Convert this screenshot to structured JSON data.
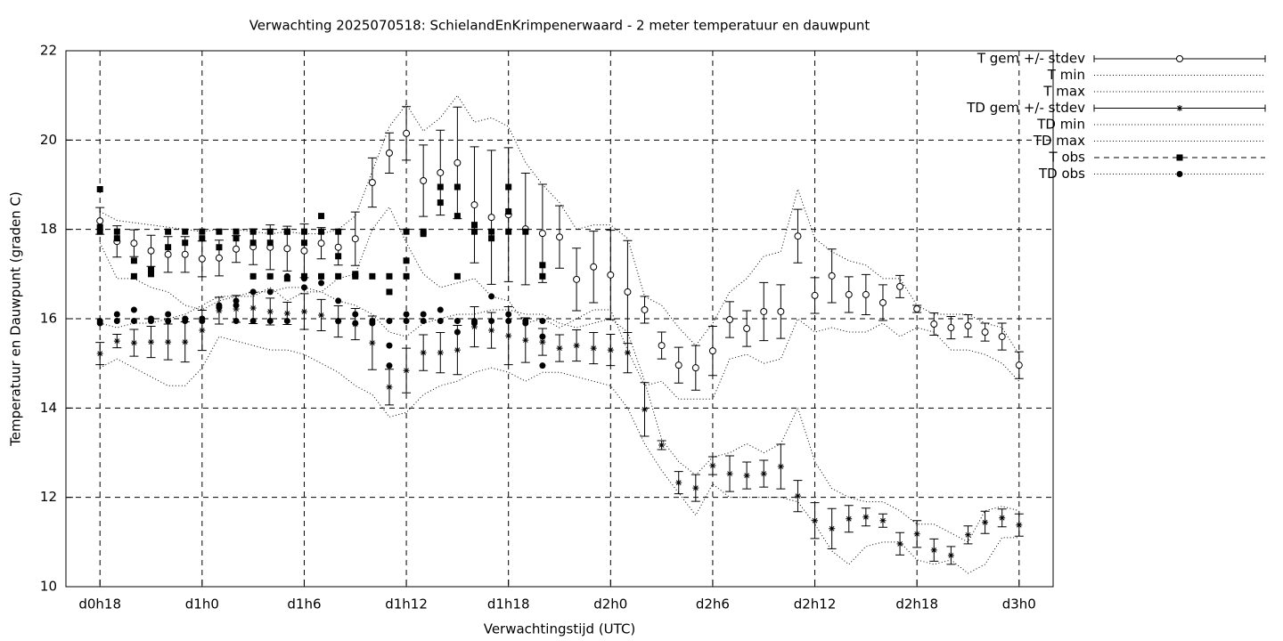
{
  "chart_data": {
    "type": "errorbar",
    "title": "Verwachting 2025070518: SchielandEnKrimpenerwaard - 2 meter temperatuur en dauwpunt",
    "x_label": "Verwachtingstijd (UTC)",
    "y_label": "Temperatuur en Dauwpunt (graden C)",
    "xlim": [
      16,
      74
    ],
    "ylim": [
      10,
      22
    ],
    "xticks": [
      {
        "value": 18,
        "label": "d0h18"
      },
      {
        "value": 24,
        "label": "d1h0"
      },
      {
        "value": 30,
        "label": "d1h6"
      },
      {
        "value": 36,
        "label": "d1h12"
      },
      {
        "value": 42,
        "label": "d1h18"
      },
      {
        "value": 48,
        "label": "d2h0"
      },
      {
        "value": 54,
        "label": "d2h6"
      },
      {
        "value": 60,
        "label": "d2h12"
      },
      {
        "value": 66,
        "label": "d2h18"
      },
      {
        "value": 72,
        "label": "d3h0"
      }
    ],
    "yticks": [
      10,
      12,
      14,
      16,
      18,
      20,
      22
    ],
    "grid": true,
    "legend": "outside-right",
    "x": [
      18,
      19,
      20,
      21,
      22,
      23,
      24,
      25,
      26,
      27,
      28,
      29,
      30,
      31,
      32,
      33,
      34,
      35,
      36,
      37,
      38,
      39,
      40,
      41,
      42,
      43,
      44,
      45,
      46,
      47,
      48,
      49,
      50,
      51,
      52,
      53,
      54,
      55,
      56,
      57,
      58,
      59,
      60,
      61,
      62,
      63,
      64,
      65,
      66,
      67,
      68,
      69,
      70,
      71,
      72
    ],
    "series": [
      {
        "name": "T gem +/- stdev",
        "color": "#000000",
        "style": "errorbar",
        "marker": "circle-open",
        "values": [
          18.19,
          17.73,
          17.69,
          17.52,
          17.44,
          17.44,
          17.34,
          17.36,
          17.56,
          17.61,
          17.6,
          17.57,
          17.52,
          17.69,
          17.6,
          17.79,
          19.05,
          19.71,
          20.15,
          19.09,
          19.27,
          19.49,
          18.55,
          18.27,
          18.33,
          18.01,
          17.91,
          17.83,
          16.88,
          17.16,
          16.98,
          16.6,
          16.2,
          15.4,
          14.96,
          14.9,
          15.28,
          15.98,
          15.78,
          16.16,
          16.16,
          17.85,
          16.52,
          16.96,
          16.54,
          16.54,
          16.36,
          16.72,
          16.22,
          15.88,
          15.8,
          15.84,
          15.7,
          15.6,
          14.96
        ],
        "errors": [
          0.3,
          0.35,
          0.3,
          0.35,
          0.4,
          0.4,
          0.4,
          0.4,
          0.3,
          0.4,
          0.5,
          0.5,
          0.6,
          0.35,
          0.4,
          0.6,
          0.55,
          0.45,
          0.6,
          0.8,
          0.95,
          1.25,
          1.3,
          1.5,
          1.5,
          1.25,
          1.1,
          0.7,
          0.7,
          0.8,
          1.0,
          1.15,
          0.3,
          0.3,
          0.4,
          0.5,
          0.55,
          0.4,
          0.4,
          0.65,
          0.6,
          0.6,
          0.4,
          0.6,
          0.4,
          0.45,
          0.4,
          0.25,
          0.08,
          0.25,
          0.25,
          0.25,
          0.2,
          0.3,
          0.3
        ]
      },
      {
        "name": "T min",
        "color": "#000000",
        "style": "dotted",
        "values": [
          17.7,
          16.9,
          16.9,
          16.7,
          16.6,
          16.3,
          16.2,
          16.4,
          16.5,
          16.5,
          16.7,
          16.4,
          16.6,
          16.6,
          16.9,
          17.0,
          18.0,
          18.5,
          17.7,
          17.0,
          16.7,
          16.8,
          16.9,
          16.5,
          16.4,
          15.9,
          16.0,
          15.8,
          16.0,
          16.2,
          16.2,
          15.3,
          14.5,
          14.6,
          14.2,
          14.2,
          14.2,
          15.1,
          15.2,
          15.0,
          15.1,
          16.0,
          15.7,
          15.8,
          15.7,
          15.7,
          15.9,
          15.6,
          15.8,
          15.7,
          15.3,
          15.3,
          15.2,
          15.0,
          14.6
        ]
      },
      {
        "name": "T max",
        "color": "#000000",
        "style": "dotted",
        "values": [
          18.4,
          18.2,
          18.15,
          18.1,
          18.05,
          18.0,
          17.95,
          18.0,
          18.0,
          17.95,
          17.9,
          17.95,
          17.9,
          17.9,
          18.0,
          18.3,
          19.3,
          20.3,
          20.8,
          20.2,
          20.5,
          21.0,
          20.4,
          20.5,
          20.3,
          19.5,
          19.0,
          18.6,
          18.0,
          18.1,
          18.1,
          17.8,
          16.5,
          16.3,
          15.8,
          15.4,
          15.9,
          16.6,
          16.9,
          17.4,
          17.5,
          18.9,
          17.8,
          17.5,
          17.3,
          17.2,
          16.9,
          16.9,
          16.3,
          16.1,
          16.1,
          16.1,
          15.9,
          15.8,
          15.2
        ]
      },
      {
        "name": "TD gem +/- stdev",
        "color": "#000000",
        "style": "errorbar",
        "marker": "asterisk",
        "values": [
          15.22,
          15.5,
          15.46,
          15.48,
          15.48,
          15.48,
          15.74,
          16.18,
          16.22,
          16.24,
          16.16,
          16.12,
          16.16,
          16.08,
          15.94,
          15.88,
          15.46,
          14.47,
          14.84,
          15.24,
          15.24,
          15.3,
          15.82,
          15.74,
          15.62,
          15.52,
          15.48,
          15.34,
          15.4,
          15.34,
          15.3,
          15.24,
          13.97,
          13.17,
          12.33,
          12.21,
          12.71,
          12.53,
          12.49,
          12.53,
          12.69,
          12.03,
          11.48,
          11.3,
          11.52,
          11.56,
          11.48,
          10.96,
          11.18,
          10.82,
          10.7,
          11.16,
          11.44,
          11.54,
          11.38
        ],
        "errors": [
          0.25,
          0.15,
          0.3,
          0.35,
          0.4,
          0.45,
          0.45,
          0.3,
          0.3,
          0.35,
          0.3,
          0.25,
          0.4,
          0.35,
          0.35,
          0.35,
          0.6,
          0.4,
          0.5,
          0.4,
          0.45,
          0.55,
          0.45,
          0.4,
          0.65,
          0.5,
          0.3,
          0.3,
          0.35,
          0.35,
          0.35,
          0.45,
          0.6,
          0.1,
          0.25,
          0.3,
          0.2,
          0.4,
          0.3,
          0.3,
          0.5,
          0.35,
          0.4,
          0.45,
          0.3,
          0.2,
          0.15,
          0.25,
          0.3,
          0.25,
          0.2,
          0.2,
          0.25,
          0.2,
          0.25
        ]
      },
      {
        "name": "TD min",
        "color": "#000000",
        "style": "dotted",
        "values": [
          14.9,
          15.1,
          14.9,
          14.7,
          14.5,
          14.5,
          14.9,
          15.6,
          15.5,
          15.4,
          15.3,
          15.3,
          15.2,
          15.0,
          14.8,
          14.5,
          14.3,
          13.8,
          13.9,
          14.3,
          14.5,
          14.6,
          14.8,
          14.9,
          14.8,
          14.6,
          14.8,
          14.8,
          14.7,
          14.6,
          14.5,
          14.0,
          13.2,
          12.6,
          12.1,
          11.6,
          12.3,
          12.0,
          12.0,
          12.0,
          12.0,
          11.9,
          11.4,
          10.8,
          10.5,
          10.9,
          11.0,
          11.0,
          10.6,
          10.5,
          10.6,
          10.3,
          10.5,
          11.1,
          11.1
        ]
      },
      {
        "name": "TD max",
        "color": "#000000",
        "style": "dotted",
        "values": [
          15.9,
          15.8,
          15.9,
          15.9,
          16.0,
          16.1,
          16.3,
          16.5,
          16.5,
          16.6,
          16.6,
          16.7,
          16.7,
          16.6,
          16.4,
          16.3,
          16.1,
          15.7,
          15.6,
          15.9,
          16.0,
          16.1,
          16.1,
          16.2,
          16.2,
          16.1,
          16.1,
          15.9,
          15.8,
          15.9,
          16.0,
          15.7,
          14.6,
          13.3,
          12.8,
          12.5,
          12.9,
          13.0,
          13.2,
          13.0,
          13.2,
          14.0,
          12.8,
          12.2,
          12.0,
          11.9,
          11.9,
          11.7,
          11.4,
          11.4,
          11.2,
          11.0,
          11.7,
          11.8,
          11.7
        ]
      },
      {
        "name": "T obs",
        "color": "#000000",
        "style": "points",
        "marker": "square",
        "x": [
          18,
          18,
          18,
          19,
          19,
          20,
          20,
          21,
          21,
          22,
          22,
          23,
          23,
          24,
          24,
          25,
          25,
          26,
          26,
          27,
          27,
          27,
          28,
          28,
          28,
          29,
          29,
          29,
          30,
          30,
          30,
          31,
          31,
          31,
          32,
          32,
          32,
          33,
          33,
          34,
          35,
          35,
          36,
          36,
          36,
          37,
          37,
          38,
          38,
          39,
          39,
          39,
          40,
          40,
          41,
          41,
          42,
          42,
          42,
          43,
          44,
          44
        ],
        "values": [
          18.9,
          18.05,
          17.95,
          17.95,
          17.8,
          17.3,
          16.95,
          17.1,
          17.0,
          17.95,
          17.6,
          17.95,
          17.7,
          17.95,
          17.8,
          17.95,
          17.6,
          17.95,
          17.8,
          17.95,
          17.7,
          16.95,
          17.95,
          17.7,
          16.95,
          17.95,
          17.95,
          16.9,
          17.95,
          17.7,
          16.95,
          18.3,
          17.95,
          16.95,
          17.95,
          17.4,
          16.95,
          16.95,
          17.0,
          16.95,
          16.95,
          16.6,
          17.95,
          17.3,
          16.95,
          17.95,
          17.9,
          18.95,
          18.6,
          18.95,
          18.3,
          16.95,
          18.1,
          17.95,
          17.95,
          17.8,
          18.95,
          18.4,
          17.95,
          17.95,
          17.2,
          16.95
        ]
      },
      {
        "name": "TD obs",
        "color": "#000000",
        "style": "points",
        "marker": "circle",
        "x": [
          18,
          18,
          19,
          19,
          20,
          20,
          21,
          21,
          22,
          22,
          23,
          23,
          24,
          24,
          25,
          25,
          26,
          26,
          26,
          27,
          27,
          27,
          28,
          28,
          28,
          29,
          29,
          30,
          30,
          31,
          31,
          32,
          32,
          33,
          33,
          34,
          34,
          35,
          35,
          35,
          36,
          36,
          37,
          37,
          38,
          38,
          39,
          39,
          40,
          40,
          41,
          41,
          42,
          42,
          43,
          43,
          44,
          44,
          44
        ],
        "values": [
          15.95,
          15.9,
          16.1,
          15.95,
          16.2,
          15.95,
          16.0,
          15.95,
          16.1,
          15.95,
          16.0,
          15.95,
          16.0,
          15.95,
          16.3,
          16.25,
          16.4,
          16.3,
          15.95,
          16.95,
          16.6,
          15.95,
          16.95,
          16.6,
          15.95,
          16.95,
          15.95,
          16.9,
          16.7,
          16.95,
          16.8,
          16.4,
          15.95,
          16.1,
          15.9,
          15.95,
          15.9,
          15.95,
          15.4,
          14.95,
          16.1,
          15.95,
          16.1,
          15.95,
          16.2,
          15.95,
          15.95,
          15.7,
          15.95,
          15.9,
          16.5,
          15.95,
          16.1,
          15.95,
          15.95,
          15.9,
          15.95,
          15.6,
          14.95
        ]
      }
    ]
  }
}
